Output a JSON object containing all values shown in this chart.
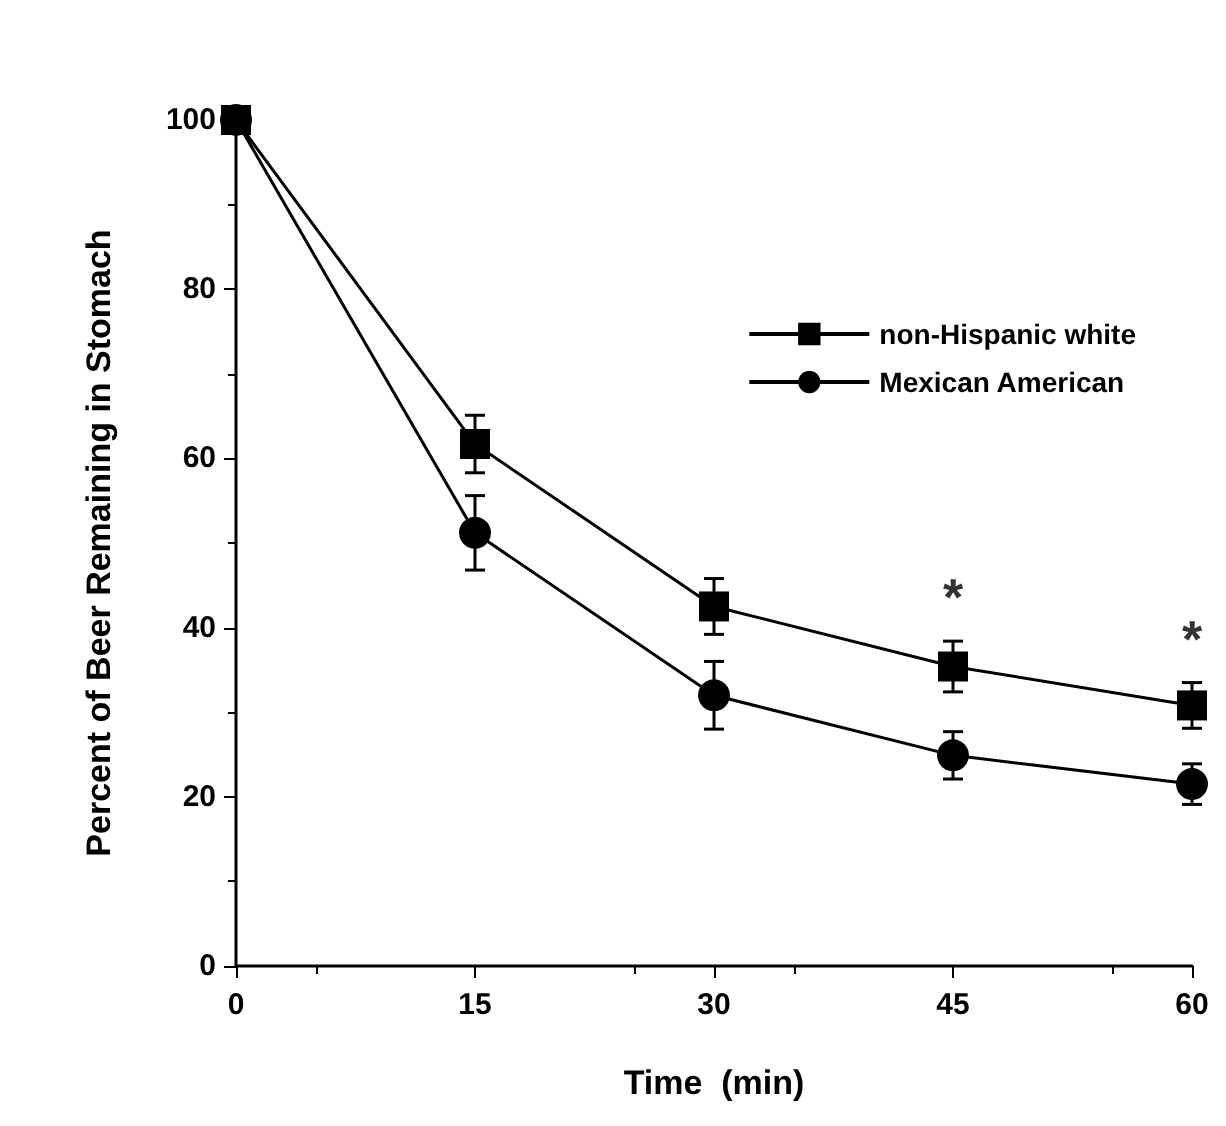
{
  "chart_data": {
    "type": "line",
    "xlabel": "Time  (min)",
    "ylabel": "Percent of Beer Remaining in Stomach",
    "x": [
      0,
      15,
      30,
      45,
      60
    ],
    "xlim": [
      0,
      60
    ],
    "xticks": [
      0,
      15,
      30,
      45,
      60
    ],
    "ylim": [
      0,
      100
    ],
    "yticks": [
      0,
      20,
      40,
      60,
      80,
      100
    ],
    "grid": false,
    "legend": "top right",
    "series": [
      {
        "name": "non-Hispanic white",
        "color": "#000000",
        "marker": "square",
        "values": [
          100,
          61.7,
          42.5,
          35.4,
          30.8
        ],
        "errors": [
          null,
          3.4,
          3.3,
          3,
          2.7
        ]
      },
      {
        "name": "Mexican American",
        "color": "#000000",
        "marker": "circle",
        "values": [
          100,
          51.2,
          32,
          24.9,
          21.5
        ],
        "errors": [
          null,
          4.4,
          4,
          2.8,
          2.4
        ]
      }
    ],
    "annotations": [
      "*",
      "*"
    ]
  }
}
